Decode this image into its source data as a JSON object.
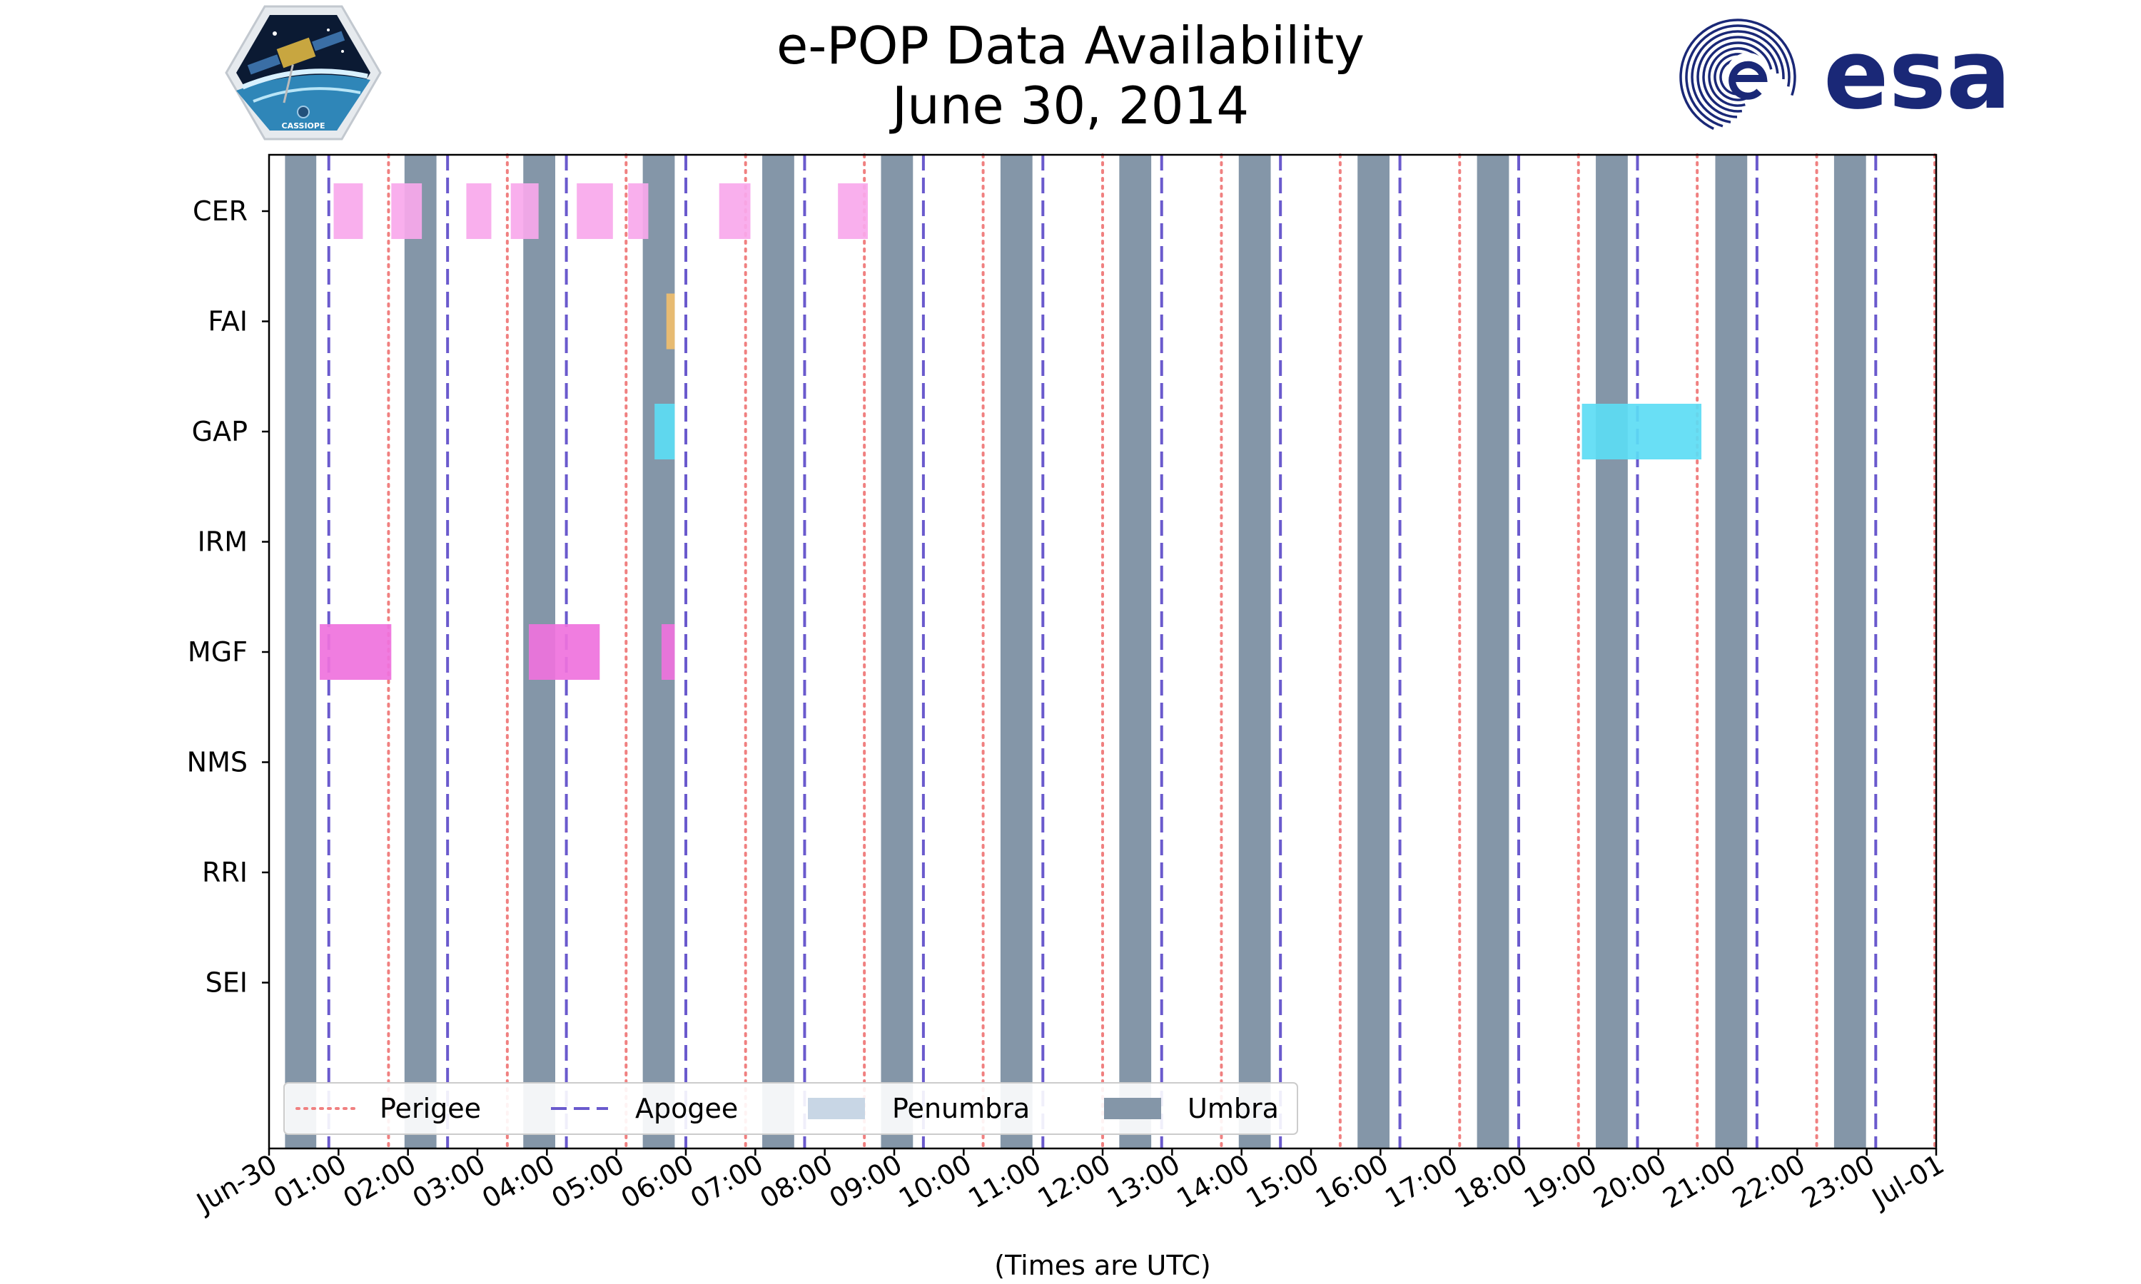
{
  "chart_data": {
    "type": "timeline",
    "title": "e-POP Data Availability",
    "subtitle": "June 30, 2014",
    "xlabel": "(Times are UTC)",
    "x_range_hours": [
      0,
      24
    ],
    "tick_labels": [
      "Jun-30",
      "01:00",
      "02:00",
      "03:00",
      "04:00",
      "05:00",
      "06:00",
      "07:00",
      "08:00",
      "09:00",
      "10:00",
      "11:00",
      "12:00",
      "13:00",
      "14:00",
      "15:00",
      "16:00",
      "17:00",
      "18:00",
      "19:00",
      "20:00",
      "21:00",
      "22:00",
      "23:00",
      "Jul-01"
    ],
    "instruments": [
      "CER",
      "FAI",
      "GAP",
      "IRM",
      "MGF",
      "NMS",
      "RRI",
      "SEI"
    ],
    "colors": {
      "perigee": "#f08080",
      "apogee": "#6a5acd",
      "penumbra": "#c8d6e5",
      "umbra": "#8496a8",
      "CER": "#f9a8ec",
      "FAI": "#f0be6e",
      "GAP": "#5cdcf4",
      "MGF": "#ef72dd"
    },
    "umbra_hours": [
      [
        0.23,
        0.68
      ],
      [
        1.95,
        2.41
      ],
      [
        3.66,
        4.12
      ],
      [
        5.38,
        5.84
      ],
      [
        7.1,
        7.56
      ],
      [
        8.81,
        9.27
      ],
      [
        10.53,
        10.99
      ],
      [
        12.24,
        12.7
      ],
      [
        13.96,
        14.42
      ],
      [
        15.67,
        16.13
      ],
      [
        17.39,
        17.85
      ],
      [
        19.1,
        19.56
      ],
      [
        20.82,
        21.28
      ],
      [
        22.53,
        22.99
      ]
    ],
    "perigee_hours": [
      1.72,
      3.43,
      5.14,
      6.86,
      8.57,
      10.28,
      12.0,
      13.71,
      15.42,
      17.14,
      18.85,
      20.56,
      22.28,
      23.98
    ],
    "apogee_hours": [
      0.86,
      2.57,
      4.28,
      6.0,
      7.71,
      9.42,
      11.14,
      12.85,
      14.56,
      16.28,
      17.99,
      19.7,
      21.42,
      23.13
    ],
    "availability": [
      {
        "instrument": "CER",
        "intervals": [
          [
            0.93,
            1.35
          ],
          [
            1.76,
            2.2
          ],
          [
            2.84,
            3.2
          ],
          [
            3.48,
            3.88
          ],
          [
            4.43,
            4.95
          ],
          [
            5.17,
            5.46
          ],
          [
            6.48,
            6.93
          ],
          [
            8.19,
            8.62
          ]
        ]
      },
      {
        "instrument": "FAI",
        "intervals": [
          [
            5.72,
            5.84
          ]
        ]
      },
      {
        "instrument": "GAP",
        "intervals": [
          [
            5.55,
            5.84
          ],
          [
            18.9,
            20.62
          ]
        ]
      },
      {
        "instrument": "IRM",
        "intervals": []
      },
      {
        "instrument": "MGF",
        "intervals": [
          [
            0.73,
            1.76
          ],
          [
            3.74,
            4.76
          ],
          [
            5.65,
            5.84
          ]
        ]
      },
      {
        "instrument": "NMS",
        "intervals": []
      },
      {
        "instrument": "RRI",
        "intervals": []
      },
      {
        "instrument": "SEI",
        "intervals": []
      }
    ],
    "legend": {
      "position": "lower-left",
      "entries": [
        {
          "label": "Perigee",
          "style": "dotted"
        },
        {
          "label": "Apogee",
          "style": "dashed"
        },
        {
          "label": "Penumbra",
          "style": "patch-light"
        },
        {
          "label": "Umbra",
          "style": "patch-dark"
        }
      ]
    }
  },
  "logos": {
    "left_mission": "CASSIOPE",
    "right_agency": "esa"
  }
}
